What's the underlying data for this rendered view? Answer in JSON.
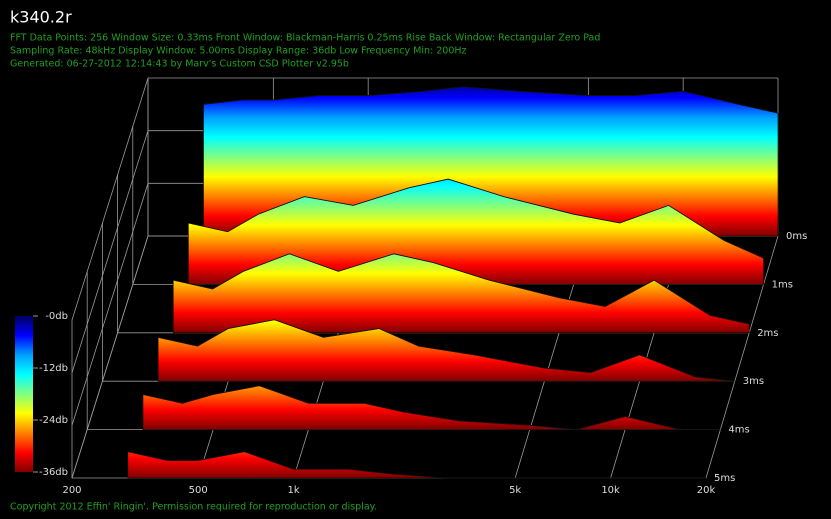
{
  "chart_data": {
    "type": "waterfall",
    "title": "k340.2r",
    "subtitle_lines": [
      "FFT Data Points: 256  Window Size: 0.33ms   Front Window: Blackman-Harris 0.25ms Rise   Back Window: Rectangular Zero Pad",
      "Sampling Rate: 48kHz  Display Window: 5.00ms   Display Range: 36db  Low Frequency Min: 200Hz",
      "Generated: 06-27-2012 12:14:43 by Marv's Custom CSD Plotter v2.95b"
    ],
    "footer": "Copyright 2012 Effin' Ringin'. Permission required for reproduction or display.",
    "log_x": true,
    "xlim": [
      200,
      20000
    ],
    "xticks": [
      200,
      500,
      {
        "value": 1000,
        "label": "1k"
      },
      {
        "value": 5000,
        "label": "5k"
      },
      {
        "value": 10000,
        "label": "10k"
      },
      {
        "value": 20000,
        "label": "20k"
      }
    ],
    "tlim": [
      0,
      5
    ],
    "tticks": [
      {
        "value": 0,
        "label": "0ms"
      },
      {
        "value": 1,
        "label": "1ms"
      },
      {
        "value": 2,
        "label": "2ms"
      },
      {
        "value": 3,
        "label": "3ms"
      },
      {
        "value": 4,
        "label": "4ms"
      },
      {
        "value": 5,
        "label": "5ms"
      }
    ],
    "zlim": [
      -36,
      0
    ],
    "zticks": [
      {
        "value": 0,
        "label": "-0db"
      },
      {
        "value": -12,
        "label": "-12db"
      },
      {
        "value": -24,
        "label": "-24db"
      },
      {
        "value": -36,
        "label": "-36db"
      }
    ],
    "colorscale": [
      "#000060",
      "#0000ff",
      "#00a0ff",
      "#00ffff",
      "#80ff80",
      "#ffff00",
      "#ff8000",
      "#ff0000",
      "#800000"
    ],
    "grid": true,
    "x": [
      300,
      400,
      500,
      700,
      1000,
      1500,
      2000,
      3000,
      5000,
      7000,
      10000,
      15000,
      20000
    ],
    "slices": [
      {
        "time": 0,
        "values": [
          -6,
          -5,
          -5,
          -4,
          -4,
          -3,
          -2,
          -3,
          -4,
          -4,
          -3,
          -6,
          -8
        ]
      },
      {
        "time": 1,
        "values": [
          -22,
          -24,
          -20,
          -16,
          -18,
          -14,
          -12,
          -16,
          -20,
          -22,
          -18,
          -26,
          -30
        ]
      },
      {
        "time": 2,
        "values": [
          -24,
          -26,
          -22,
          -18,
          -22,
          -18,
          -20,
          -24,
          -28,
          -30,
          -24,
          -32,
          -34
        ]
      },
      {
        "time": 3,
        "values": [
          -26,
          -28,
          -24,
          -22,
          -26,
          -24,
          -28,
          -30,
          -33,
          -34,
          -30,
          -35,
          -36
        ]
      },
      {
        "time": 4,
        "values": [
          -28,
          -30,
          -28,
          -26,
          -30,
          -30,
          -32,
          -34,
          -35,
          -36,
          -33,
          -36,
          -36
        ]
      },
      {
        "time": 5,
        "values": [
          -30,
          -32,
          -32,
          -30,
          -34,
          -34,
          -35,
          -36,
          -36,
          -36,
          -36,
          -36,
          -36
        ]
      }
    ]
  }
}
